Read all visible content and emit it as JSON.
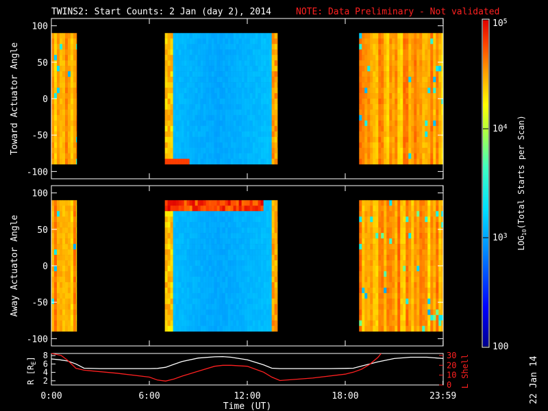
{
  "title": {
    "main": "TWINS2: Start Counts:  2 Jan (day   2), 2014",
    "note": "NOTE: Data Preliminary - Not validated"
  },
  "colors": {
    "background": "#000000",
    "foreground": "#ffffff",
    "note": "#ff2020",
    "l_shell_line": "#ff2020",
    "r_line": "#ffffff"
  },
  "footer_date": "22 Jan 14",
  "chart_data": [
    {
      "type": "heatmap",
      "ylabel": "Toward Actuator Angle",
      "ylim": [
        -110,
        110
      ],
      "yticks": [
        "100",
        "50",
        "0",
        "-50",
        "-100"
      ],
      "x_range_hours": [
        0,
        24
      ],
      "y_data_range": [
        -90,
        90
      ],
      "data_intervals_hours": [
        [
          0.0,
          1.55
        ],
        [
          6.95,
          13.85
        ],
        [
          18.85,
          24.0
        ]
      ],
      "background_level_log10": [
        4.5,
        3.05,
        4.5
      ]
    },
    {
      "type": "heatmap",
      "ylabel": "Away Actuator Angle",
      "ylim": [
        -110,
        110
      ],
      "yticks": [
        "100",
        "50",
        "0",
        "-50",
        "-100"
      ],
      "x_range_hours": [
        0,
        24
      ],
      "y_data_range": [
        -90,
        90
      ],
      "data_intervals_hours": [
        [
          0.0,
          1.55
        ],
        [
          6.95,
          13.85
        ],
        [
          18.85,
          24.0
        ]
      ],
      "background_level_log10": [
        4.5,
        3.1,
        4.5
      ]
    },
    {
      "type": "line",
      "ylabel_left": "R [R",
      "ylabel_left_sub": "E",
      "ylabel_left_end": "]",
      "ylabel_right": "L Shell",
      "y_left_ticks": [
        "8",
        "6",
        "4",
        "2"
      ],
      "y_left_range": [
        1,
        8.5
      ],
      "y_right_ticks": [
        "30",
        "20",
        "10",
        "0"
      ],
      "y_right_range": [
        0,
        32
      ],
      "xlabel": "Time (UT)",
      "xticks": [
        "0:00",
        "6:00",
        "12:00",
        "18:00",
        "23:59"
      ],
      "xtick_hours": [
        0,
        6,
        12,
        18,
        23.983
      ],
      "series": [
        {
          "axis": "left",
          "color": "#ffffff",
          "x": [
            0,
            0.5,
            1,
            1.5,
            2,
            3,
            4,
            5,
            6,
            6.5,
            7,
            7.5,
            8,
            9,
            10,
            10.5,
            11,
            12,
            13,
            13.5,
            14,
            15,
            16,
            17,
            18,
            18.5,
            19,
            20,
            21,
            22,
            23,
            24
          ],
          "values": [
            7.2,
            7.0,
            6.7,
            6.0,
            5.0,
            4.9,
            4.9,
            4.9,
            4.9,
            4.95,
            5.2,
            5.9,
            6.6,
            7.4,
            7.7,
            7.75,
            7.6,
            7.0,
            5.8,
            5.0,
            4.9,
            4.9,
            4.9,
            4.9,
            4.95,
            5.0,
            5.5,
            6.5,
            7.3,
            7.6,
            7.6,
            7.3
          ]
        },
        {
          "axis": "right",
          "color": "#ff2020",
          "x": [
            0,
            0.3,
            0.6,
            1,
            1.5,
            2,
            4,
            6,
            6.5,
            7,
            7.5,
            8,
            9,
            10,
            10.5,
            11,
            12,
            13,
            13.5,
            14,
            16,
            18,
            18.5,
            19,
            19.5,
            20,
            20.2
          ],
          "values": [
            32,
            31,
            30,
            25,
            17,
            15,
            12,
            8,
            5,
            4,
            6,
            9,
            14,
            19,
            20,
            20,
            19,
            13,
            8,
            4.5,
            7,
            11,
            13,
            16,
            21,
            28,
            32
          ]
        }
      ]
    }
  ],
  "colorbar": {
    "label": "LOG",
    "label_sub": "10",
    "label_rest": "(Total Starts per Scan)",
    "tick_labels": [
      "10",
      "10",
      "10",
      "100"
    ],
    "tick_exponents": [
      "5",
      "4",
      "3",
      ""
    ],
    "tick_values_log10": [
      5,
      4,
      3,
      2
    ],
    "range_log10": [
      2,
      5
    ]
  }
}
